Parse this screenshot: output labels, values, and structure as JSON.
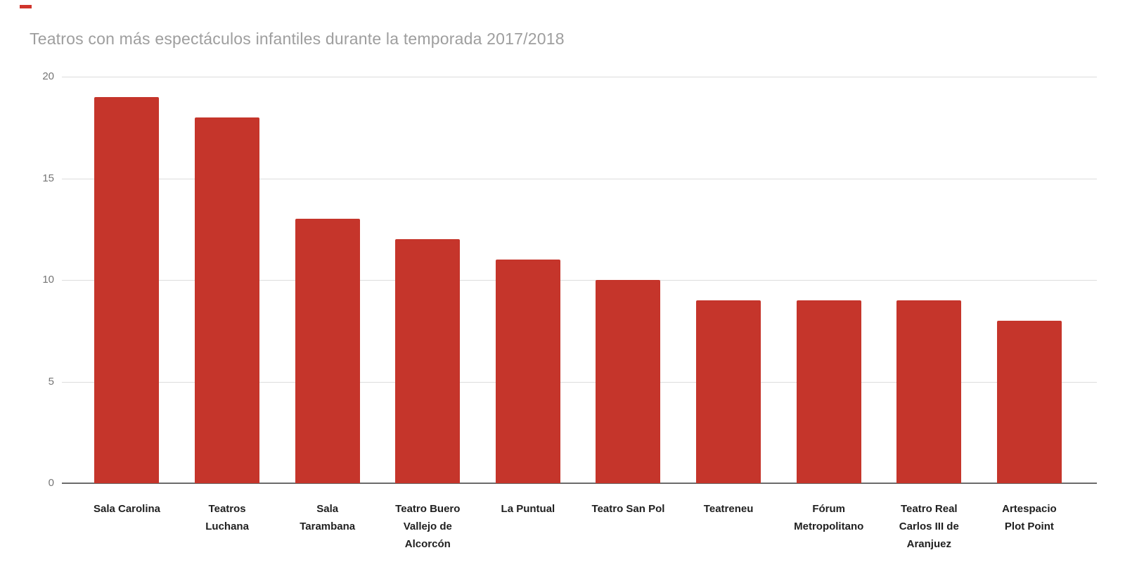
{
  "title": "Teatros con más espectáculos infantiles durante la temporada 2017/2018",
  "colors": {
    "bar": "#c5352b",
    "title_text": "#9e9e9e",
    "axis_tick_text": "#757575",
    "category_label_text": "#1f1f1f",
    "gridline": "#dcdcdc",
    "baseline": "#6b6b6b",
    "top_mark": "#d0342c",
    "background": "#ffffff"
  },
  "y_axis": {
    "tick_labels": [
      "20",
      "15",
      "10",
      "5",
      "0"
    ]
  },
  "x_axis": {
    "labels": [
      "Sala Carolina",
      "Teatros\nLuchana",
      "Sala\nTarambana",
      "Teatro Buero\nVallejo de\nAlcorcón",
      "La Puntual",
      "Teatro San Pol",
      "Teatreneu",
      "Fórum\nMetropolitano",
      "Teatro Real\nCarlos III de\nAranjuez",
      "Artespacio\nPlot Point"
    ]
  },
  "chart_data": {
    "type": "bar",
    "title": "Teatros con más espectáculos infantiles durante la temporada 2017/2018",
    "categories": [
      "Sala Carolina",
      "Teatros Luchana",
      "Sala Tarambana",
      "Teatro Buero Vallejo de Alcorcón",
      "La Puntual",
      "Teatro San Pol",
      "Teatreneu",
      "Fórum Metropolitano",
      "Teatro Real Carlos III de Aranjuez",
      "Artespacio Plot Point"
    ],
    "values": [
      19,
      18,
      13,
      12,
      11,
      10,
      9,
      9,
      9,
      8
    ],
    "xlabel": "",
    "ylabel": "",
    "ylim": [
      0,
      20
    ],
    "yticks": [
      0,
      5,
      10,
      15,
      20
    ],
    "grid": true,
    "legend_position": "none",
    "bar_color": "#c5352b"
  }
}
